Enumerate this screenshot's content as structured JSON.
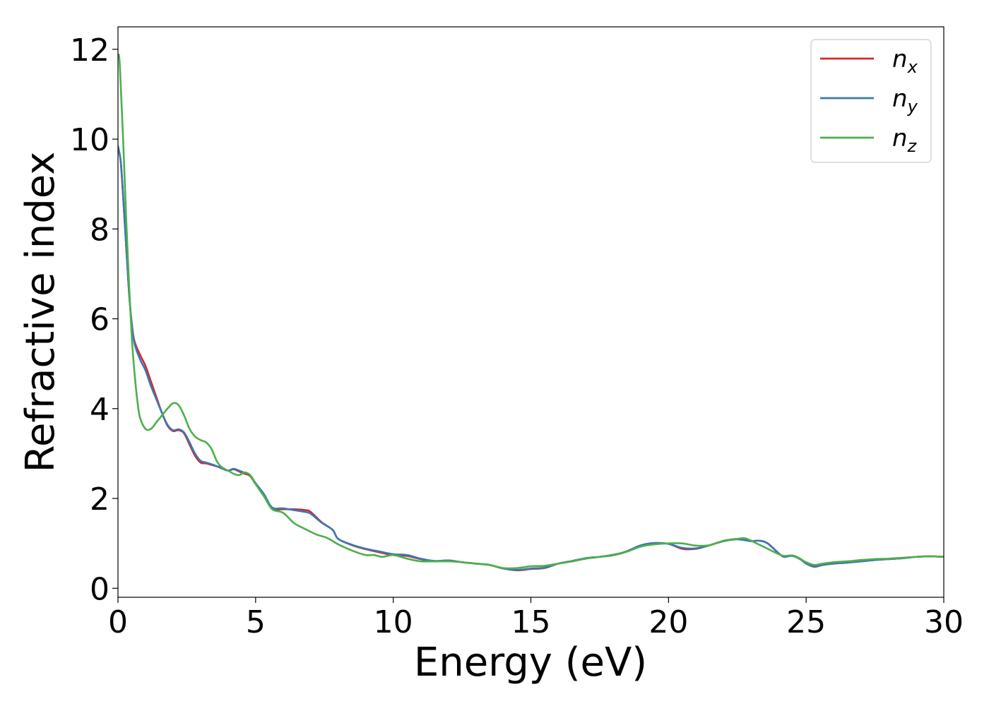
{
  "chart_data": {
    "type": "line",
    "xlabel": "Energy (eV)",
    "ylabel": "Refractive index",
    "xlim": [
      0,
      30
    ],
    "ylim": [
      -0.2,
      12.5
    ],
    "xticks": [
      0,
      5,
      10,
      15,
      20,
      25,
      30
    ],
    "yticks": [
      0,
      2,
      4,
      6,
      8,
      10,
      12
    ],
    "xtick_labels": [
      "0",
      "5",
      "10",
      "15",
      "20",
      "25",
      "30"
    ],
    "ytick_labels": [
      "0",
      "2",
      "4",
      "6",
      "8",
      "10",
      "12"
    ],
    "grid": false,
    "legend": {
      "position": "top-right",
      "entries": [
        {
          "base": "n",
          "sub": "x"
        },
        {
          "base": "n",
          "sub": "y"
        },
        {
          "base": "n",
          "sub": "z"
        }
      ]
    },
    "series": [
      {
        "color": "#d62728",
        "x": [
          0,
          0.1,
          0.2,
          0.3,
          0.4,
          0.5,
          0.6,
          0.8,
          1.0,
          1.2,
          1.4,
          1.6,
          1.8,
          2.0,
          2.2,
          2.4,
          2.6,
          2.8,
          3.0,
          3.2,
          3.5,
          3.8,
          4.0,
          4.2,
          4.4,
          4.6,
          4.8,
          5.0,
          5.3,
          5.6,
          6.0,
          6.4,
          6.8,
          7.0,
          7.4,
          7.8,
          8.0,
          8.5,
          9.0,
          9.5,
          10.0,
          10.5,
          11.0,
          11.5,
          12.0,
          12.5,
          13.0,
          13.5,
          14.0,
          14.5,
          15.0,
          15.5,
          16.0,
          16.5,
          17.0,
          17.5,
          18.0,
          18.5,
          19.0,
          19.5,
          20.0,
          20.5,
          21.0,
          21.5,
          22.0,
          22.5,
          23.0,
          23.3,
          23.6,
          24.0,
          24.2,
          24.5,
          24.8,
          25.0,
          25.3,
          25.6,
          26.0,
          26.5,
          27.0,
          27.5,
          28.0,
          28.5,
          29.0,
          29.5,
          30.0
        ],
        "y": [
          9.8,
          9.5,
          8.6,
          7.6,
          6.6,
          5.9,
          5.5,
          5.2,
          4.95,
          4.6,
          4.25,
          3.9,
          3.62,
          3.5,
          3.52,
          3.45,
          3.2,
          2.95,
          2.8,
          2.78,
          2.73,
          2.68,
          2.62,
          2.65,
          2.6,
          2.55,
          2.5,
          2.32,
          2.08,
          1.78,
          1.76,
          1.76,
          1.74,
          1.7,
          1.47,
          1.3,
          1.1,
          0.96,
          0.87,
          0.8,
          0.74,
          0.72,
          0.65,
          0.6,
          0.62,
          0.58,
          0.55,
          0.52,
          0.44,
          0.4,
          0.43,
          0.45,
          0.55,
          0.6,
          0.67,
          0.7,
          0.74,
          0.82,
          0.95,
          1.0,
          0.99,
          0.88,
          0.88,
          0.96,
          1.05,
          1.1,
          1.05,
          1.06,
          1.0,
          0.78,
          0.7,
          0.73,
          0.65,
          0.55,
          0.48,
          0.52,
          0.55,
          0.57,
          0.6,
          0.63,
          0.65,
          0.67,
          0.7,
          0.71,
          0.7
        ]
      },
      {
        "color": "#3a78b5",
        "x": [
          0,
          0.1,
          0.2,
          0.3,
          0.4,
          0.5,
          0.6,
          0.8,
          1.0,
          1.2,
          1.4,
          1.6,
          1.8,
          2.0,
          2.2,
          2.4,
          2.6,
          2.8,
          3.0,
          3.2,
          3.5,
          3.8,
          4.0,
          4.2,
          4.4,
          4.6,
          4.8,
          5.0,
          5.3,
          5.6,
          6.0,
          6.4,
          6.8,
          7.0,
          7.4,
          7.8,
          8.0,
          8.5,
          9.0,
          9.5,
          10.0,
          10.5,
          11.0,
          11.5,
          12.0,
          12.5,
          13.0,
          13.5,
          14.0,
          14.5,
          15.0,
          15.5,
          16.0,
          16.5,
          17.0,
          17.5,
          18.0,
          18.5,
          19.0,
          19.5,
          20.0,
          20.5,
          21.0,
          21.5,
          22.0,
          22.5,
          23.0,
          23.3,
          23.6,
          24.0,
          24.2,
          24.5,
          24.8,
          25.0,
          25.3,
          25.6,
          26.0,
          26.5,
          27.0,
          27.5,
          28.0,
          28.5,
          29.0,
          29.5,
          30.0
        ],
        "y": [
          9.85,
          9.5,
          8.6,
          7.6,
          6.6,
          5.9,
          5.45,
          5.1,
          4.85,
          4.5,
          4.2,
          3.9,
          3.64,
          3.52,
          3.54,
          3.47,
          3.25,
          3.0,
          2.84,
          2.8,
          2.74,
          2.66,
          2.62,
          2.66,
          2.62,
          2.57,
          2.52,
          2.34,
          2.1,
          1.8,
          1.78,
          1.74,
          1.7,
          1.66,
          1.46,
          1.3,
          1.1,
          0.97,
          0.88,
          0.82,
          0.76,
          0.74,
          0.66,
          0.61,
          0.62,
          0.58,
          0.55,
          0.52,
          0.44,
          0.41,
          0.44,
          0.46,
          0.55,
          0.61,
          0.67,
          0.7,
          0.74,
          0.83,
          0.96,
          1.01,
          0.99,
          0.9,
          0.89,
          0.96,
          1.05,
          1.09,
          1.05,
          1.06,
          1.0,
          0.78,
          0.7,
          0.72,
          0.64,
          0.55,
          0.49,
          0.52,
          0.55,
          0.57,
          0.6,
          0.63,
          0.65,
          0.67,
          0.7,
          0.71,
          0.7
        ]
      },
      {
        "color": "#4daf4a",
        "x": [
          0,
          0.05,
          0.1,
          0.2,
          0.3,
          0.4,
          0.5,
          0.6,
          0.7,
          0.8,
          1.0,
          1.2,
          1.4,
          1.6,
          1.8,
          2.0,
          2.2,
          2.4,
          2.6,
          2.8,
          3.0,
          3.2,
          3.4,
          3.6,
          3.8,
          4.0,
          4.2,
          4.4,
          4.6,
          4.8,
          5.0,
          5.3,
          5.6,
          6.0,
          6.4,
          6.8,
          7.2,
          7.6,
          8.0,
          8.5,
          9.0,
          9.3,
          9.6,
          10.0,
          10.5,
          11.0,
          11.5,
          12.0,
          12.5,
          13.0,
          13.5,
          14.0,
          14.5,
          15.0,
          15.5,
          16.0,
          16.5,
          17.0,
          17.5,
          18.0,
          18.5,
          19.0,
          19.5,
          20.0,
          20.5,
          21.0,
          21.5,
          22.0,
          22.5,
          22.8,
          23.2,
          23.6,
          24.0,
          24.2,
          24.5,
          24.8,
          25.0,
          25.3,
          25.6,
          26.0,
          26.5,
          27.0,
          27.5,
          28.0,
          28.5,
          29.0,
          29.5,
          30.0
        ],
        "y": [
          11.9,
          11.8,
          11.2,
          9.8,
          8.2,
          6.8,
          5.6,
          4.8,
          4.2,
          3.8,
          3.55,
          3.55,
          3.7,
          3.85,
          4.0,
          4.12,
          4.08,
          3.85,
          3.55,
          3.38,
          3.3,
          3.25,
          3.1,
          2.82,
          2.68,
          2.62,
          2.55,
          2.52,
          2.58,
          2.52,
          2.32,
          2.05,
          1.76,
          1.68,
          1.45,
          1.32,
          1.2,
          1.12,
          0.98,
          0.84,
          0.74,
          0.74,
          0.7,
          0.74,
          0.66,
          0.6,
          0.6,
          0.6,
          0.58,
          0.55,
          0.52,
          0.45,
          0.45,
          0.49,
          0.5,
          0.55,
          0.6,
          0.66,
          0.7,
          0.75,
          0.82,
          0.93,
          0.98,
          1.0,
          1.0,
          0.95,
          0.96,
          1.06,
          1.1,
          1.11,
          1.0,
          0.88,
          0.76,
          0.72,
          0.73,
          0.65,
          0.58,
          0.52,
          0.55,
          0.58,
          0.6,
          0.63,
          0.65,
          0.66,
          0.68,
          0.7,
          0.71,
          0.7
        ]
      }
    ]
  }
}
